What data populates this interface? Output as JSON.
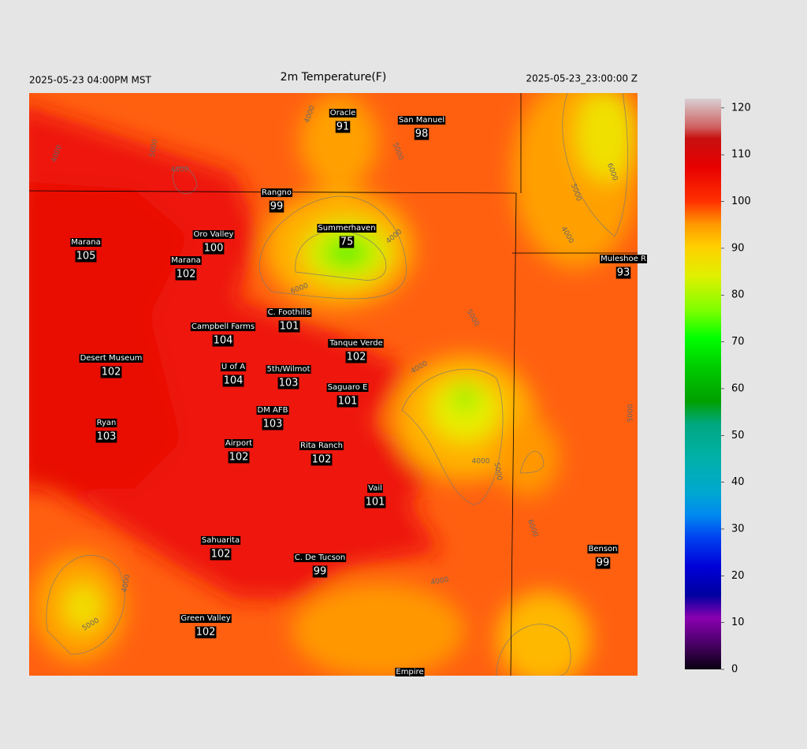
{
  "header": {
    "left": "2025-05-23 04:00PM MST",
    "title": "2m Temperature(F)",
    "right": "2025-05-23_23:00:00 Z"
  },
  "stations": [
    {
      "name": "Oracle",
      "value": 91
    },
    {
      "name": "San Manuel",
      "value": 98
    },
    {
      "name": "Rangno",
      "value": 99
    },
    {
      "name": "Summerhaven",
      "value": 75
    },
    {
      "name": "Marana",
      "value": 105
    },
    {
      "name": "Oro Valley",
      "value": 100
    },
    {
      "name": "Marana",
      "value": 102
    },
    {
      "name": "Muleshoe R",
      "value": 93
    },
    {
      "name": "C. Foothills",
      "value": 101
    },
    {
      "name": "Campbell Farms",
      "value": 104
    },
    {
      "name": "Tanque Verde",
      "value": 102
    },
    {
      "name": "Desert Museum",
      "value": 102
    },
    {
      "name": "U of A",
      "value": 104
    },
    {
      "name": "5th/Wilmot",
      "value": 103
    },
    {
      "name": "Saguaro E",
      "value": 101
    },
    {
      "name": "DM AFB",
      "value": 103
    },
    {
      "name": "Ryan",
      "value": 103
    },
    {
      "name": "Airport",
      "value": 102
    },
    {
      "name": "Rita Ranch",
      "value": 102
    },
    {
      "name": "Vail",
      "value": 101
    },
    {
      "name": "Sahuarita",
      "value": 102
    },
    {
      "name": "C. De Tucson",
      "value": 99
    },
    {
      "name": "Benson",
      "value": 99
    },
    {
      "name": "Green Valley",
      "value": 102
    },
    {
      "name": "Empire"
    }
  ],
  "contour_labels": [
    "4000",
    "5000",
    "4000",
    "4000",
    "5000",
    "6000",
    "5000",
    "6000",
    "4000",
    "4000",
    "5000",
    "4000",
    "4000",
    "5000",
    "6000",
    "5000",
    "4000",
    "5000",
    "4000"
  ],
  "colorbar": {
    "lim": [
      0,
      122
    ],
    "ticks": [
      0,
      10,
      20,
      30,
      40,
      50,
      60,
      70,
      80,
      90,
      100,
      110,
      120
    ]
  }
}
